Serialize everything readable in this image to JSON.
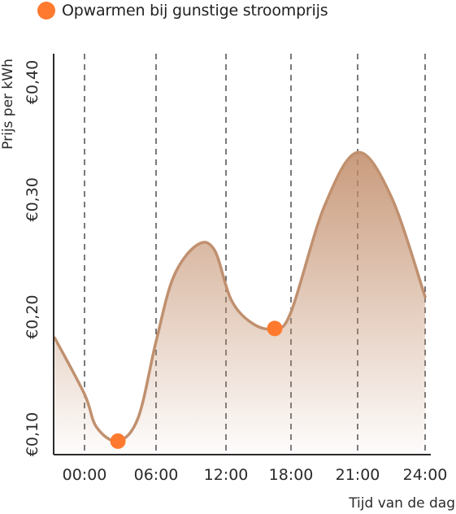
{
  "legend": {
    "label": "Opwarmen bij gunstige stroomprijs",
    "marker_color": "#ff7a2f"
  },
  "chart_data": {
    "type": "area",
    "title": "",
    "xlabel": "Tijd van de dag",
    "ylabel": "Prijs per kWh",
    "x_ticks": [
      "00:00",
      "06:00",
      "12:00",
      "18:00",
      "21:00",
      "24:00"
    ],
    "y_ticks": [
      "€0,10",
      "€0,20",
      "€0,30",
      "€0,40"
    ],
    "ylim": [
      0.05,
      0.41
    ],
    "grid": "dashed vertical lines at x ticks",
    "legend_position": "top-left",
    "series": [
      {
        "line_color": "#c0906f",
        "fill_color": "#c08a66",
        "points": [
          {
            "x": -2.5,
            "y": 0.178
          },
          {
            "x": 0.0,
            "y": 0.13
          },
          {
            "x": 1.0,
            "y": 0.102
          },
          {
            "x": 2.8,
            "y": 0.09
          },
          {
            "x": 4.5,
            "y": 0.11
          },
          {
            "x": 6.0,
            "y": 0.175
          },
          {
            "x": 7.5,
            "y": 0.23
          },
          {
            "x": 9.5,
            "y": 0.257
          },
          {
            "x": 11.0,
            "y": 0.253
          },
          {
            "x": 12.5,
            "y": 0.21
          },
          {
            "x": 14.5,
            "y": 0.19
          },
          {
            "x": 16.5,
            "y": 0.186
          },
          {
            "x": 18.0,
            "y": 0.2
          },
          {
            "x": 19.5,
            "y": 0.29
          },
          {
            "x": 21.0,
            "y": 0.336
          },
          {
            "x": 22.5,
            "y": 0.298
          },
          {
            "x": 24.0,
            "y": 0.213
          }
        ]
      }
    ],
    "highlight_points": [
      {
        "x": 2.8,
        "y": 0.09
      },
      {
        "x": 16.5,
        "y": 0.186
      }
    ]
  }
}
